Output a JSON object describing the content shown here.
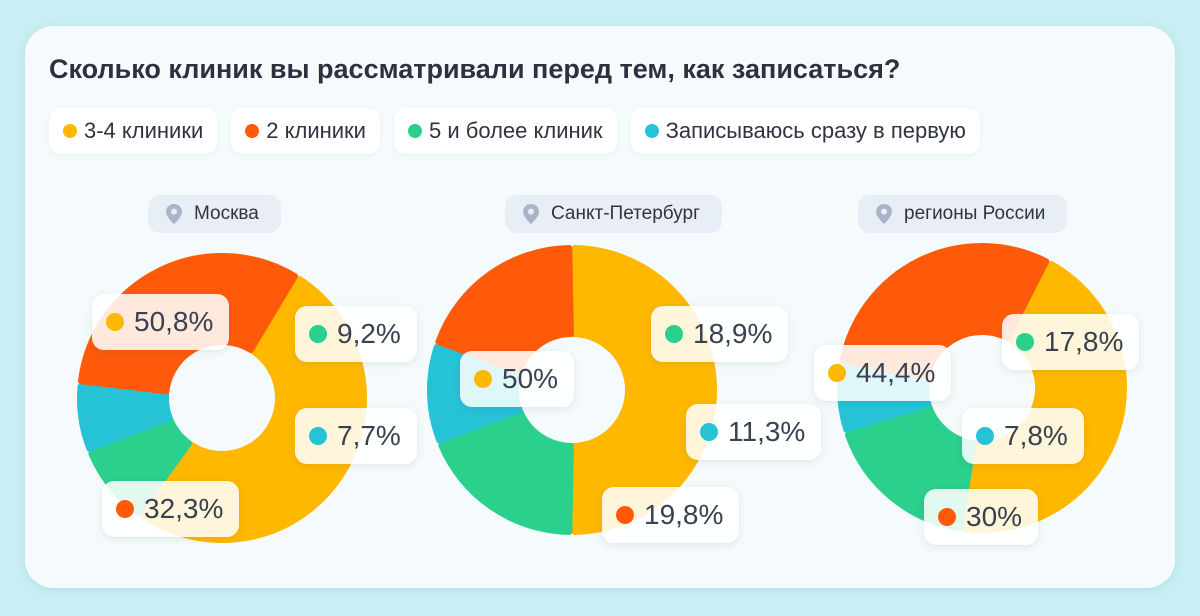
{
  "colors": {
    "c34": "#ffb800",
    "c2": "#ff5a0a",
    "c5": "#2bd08c",
    "c1": "#26c2d6"
  },
  "chart_data": {
    "type": "pie",
    "title": "Сколько клиник вы рассматривали перед тем, как записаться?",
    "legend": [
      {
        "key": "c34",
        "label": "3-4 клиники"
      },
      {
        "key": "c2",
        "label": "2 клиники"
      },
      {
        "key": "c5",
        "label": "5 и более клиник"
      },
      {
        "key": "c1",
        "label": "Записываюсь сразу в первую"
      }
    ],
    "charts": [
      {
        "region": "Москва",
        "slices": [
          {
            "key": "c34",
            "value": 50.8,
            "label": "50,8%"
          },
          {
            "key": "c5",
            "value": 9.2,
            "label": "9,2%"
          },
          {
            "key": "c1",
            "value": 7.7,
            "label": "7,7%"
          },
          {
            "key": "c2",
            "value": 32.3,
            "label": "32,3%"
          }
        ]
      },
      {
        "region": "Санкт-Петербург",
        "slices": [
          {
            "key": "c34",
            "value": 50,
            "label": "50%"
          },
          {
            "key": "c5",
            "value": 18.9,
            "label": "18,9%"
          },
          {
            "key": "c1",
            "value": 11.3,
            "label": "11,3%"
          },
          {
            "key": "c2",
            "value": 19.8,
            "label": "19,8%"
          }
        ]
      },
      {
        "region": "регионы России",
        "slices": [
          {
            "key": "c34",
            "value": 44.4,
            "label": "44,4%"
          },
          {
            "key": "c5",
            "value": 17.8,
            "label": "17,8%"
          },
          {
            "key": "c1",
            "value": 7.8,
            "label": "7,8%"
          },
          {
            "key": "c2",
            "value": 30,
            "label": "30%"
          }
        ]
      }
    ]
  }
}
